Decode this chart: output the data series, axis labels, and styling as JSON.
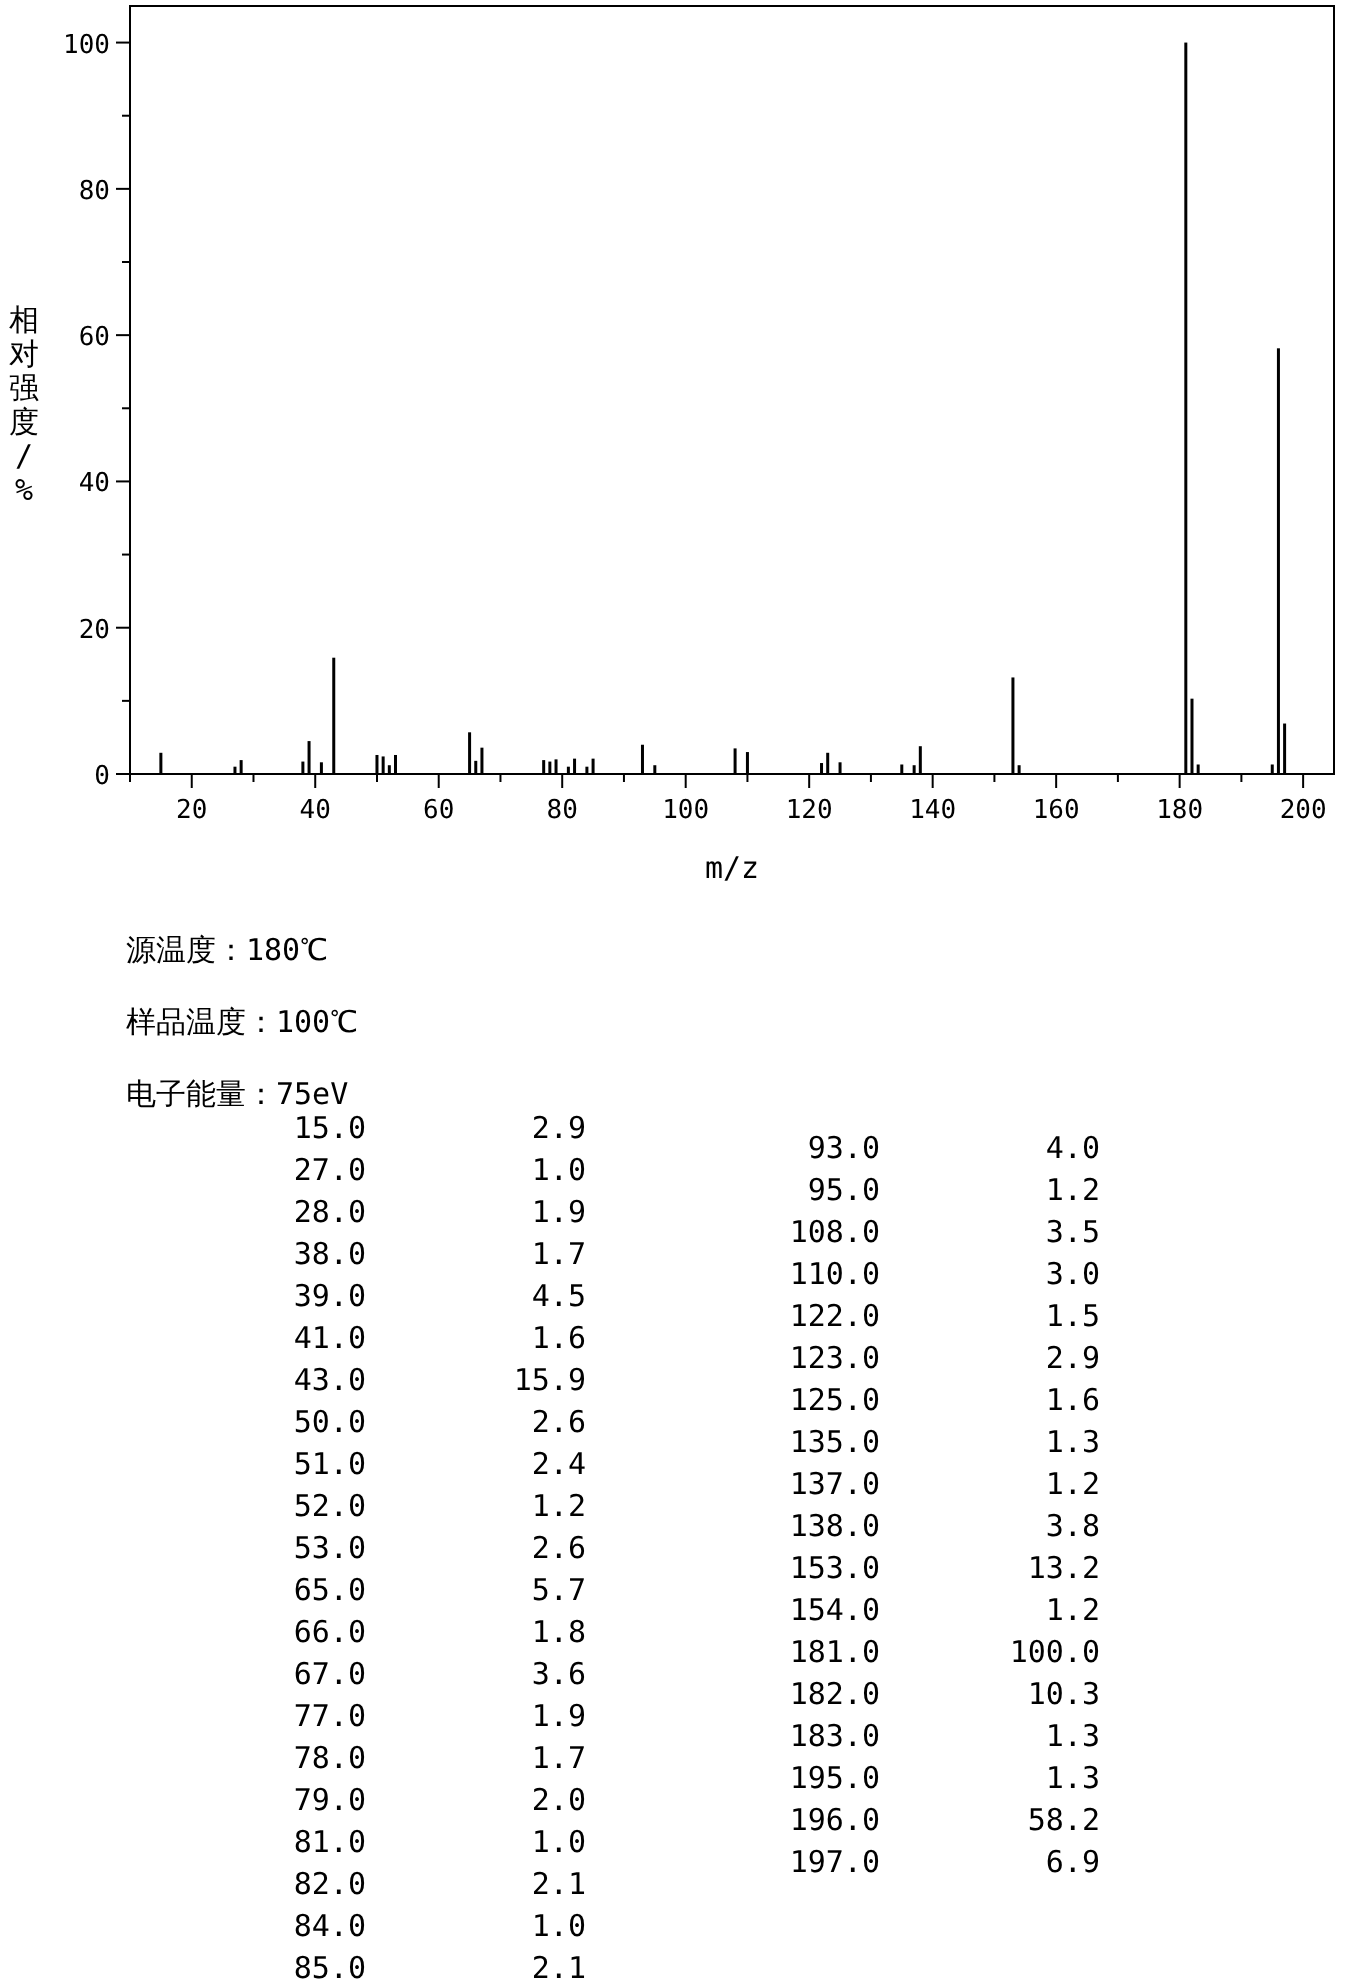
{
  "chart_data": {
    "type": "bar",
    "xlabel": "m/z",
    "ylabel": "相对强度/%",
    "x": [
      15,
      27,
      28,
      38,
      39,
      41,
      43,
      50,
      51,
      52,
      53,
      65,
      66,
      67,
      77,
      78,
      79,
      81,
      82,
      84,
      85,
      93,
      95,
      108,
      110,
      122,
      123,
      125,
      135,
      137,
      138,
      153,
      154,
      181,
      182,
      183,
      195,
      196,
      197
    ],
    "values": [
      2.9,
      1.0,
      1.9,
      1.7,
      4.5,
      1.6,
      15.9,
      2.6,
      2.4,
      1.2,
      2.6,
      5.7,
      1.8,
      3.6,
      1.9,
      1.7,
      2.0,
      1.0,
      2.1,
      1.0,
      2.1,
      4.0,
      1.2,
      3.5,
      3.0,
      1.5,
      2.9,
      1.6,
      1.3,
      1.2,
      3.8,
      13.2,
      1.2,
      100.0,
      10.3,
      1.3,
      1.3,
      58.2,
      6.9
    ],
    "color": "#000000",
    "xlim": [
      10,
      205
    ],
    "ylim": [
      0,
      105
    ],
    "xticks": [
      {
        "value": 10,
        "label": null
      },
      20,
      {
        "value": 30,
        "label": null
      },
      40,
      {
        "value": 50,
        "label": null
      },
      60,
      {
        "value": 70,
        "label": null
      },
      80,
      {
        "value": 90,
        "label": null
      },
      100,
      {
        "value": 110,
        "label": null
      },
      120,
      {
        "value": 130,
        "label": null
      },
      140,
      {
        "value": 150,
        "label": null
      },
      160,
      {
        "value": 170,
        "label": null
      },
      180,
      {
        "value": 190,
        "label": null
      },
      200
    ],
    "yticks": [
      0,
      {
        "value": 10,
        "label": null
      },
      20,
      {
        "value": 30,
        "label": null
      },
      40,
      {
        "value": 50,
        "label": null
      },
      60,
      {
        "value": 70,
        "label": null
      },
      80,
      {
        "value": 90,
        "label": null
      },
      100
    ],
    "annotations": [
      "源温度：180℃",
      "样品温度：100℃",
      "电子能量：75eV",
      "15.0",
      "2.9",
      "27.0",
      "1.0",
      "28.0",
      "1.9",
      "38.0",
      "1.7",
      "39.0",
      "4.5",
      "41.0",
      "1.6",
      "43.0",
      "15.9",
      "50.0",
      "2.6",
      "51.0",
      "2.4",
      "52.0",
      "1.2",
      "53.0",
      "2.6",
      "65.0",
      "5.7",
      "66.0",
      "1.8",
      "67.0",
      "3.6",
      "77.0",
      "1.9",
      "78.0",
      "1.7",
      "79.0",
      "2.0",
      "81.0",
      "1.0",
      "82.0",
      "2.1",
      "84.0",
      "1.0",
      "85.0",
      "2.1",
      "93.0",
      "4.0",
      "95.0",
      "1.2",
      "108.0",
      "3.5",
      "110.0",
      "3.0",
      "122.0",
      "1.5",
      "123.0",
      "2.9",
      "125.0",
      "1.6",
      "135.0",
      "1.3",
      "137.0",
      "1.2",
      "138.0",
      "3.8",
      "153.0",
      "13.2",
      "154.0",
      "1.2",
      "181.0",
      "100.0",
      "182.0",
      "10.3",
      "183.0",
      "1.3",
      "195.0",
      "1.3",
      "196.0",
      "58.2",
      "197.0",
      "6.9"
    ]
  }
}
